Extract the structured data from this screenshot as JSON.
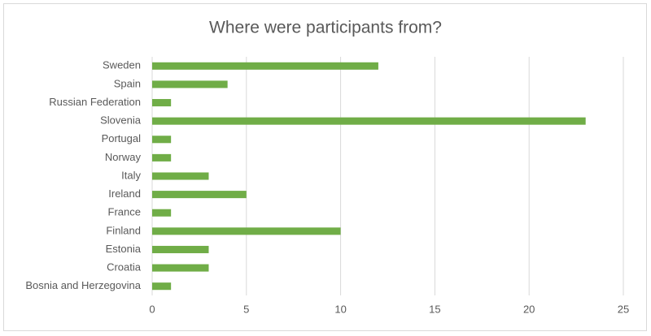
{
  "chart_data": {
    "type": "bar",
    "orientation": "horizontal",
    "title": "Where were participants from?",
    "categories": [
      "Sweden",
      "Spain",
      "Russian Federation",
      "Slovenia",
      "Portugal",
      "Norway",
      "Italy",
      "Ireland",
      "France",
      "Finland",
      "Estonia",
      "Croatia",
      "Bosnia and Herzegovina"
    ],
    "values": [
      12,
      4,
      1,
      23,
      1,
      1,
      3,
      5,
      1,
      10,
      3,
      3,
      1
    ],
    "color": "#70ad47",
    "xlim": [
      0,
      25
    ],
    "xticks": [
      0,
      5,
      10,
      15,
      20,
      25
    ],
    "grid": true
  }
}
